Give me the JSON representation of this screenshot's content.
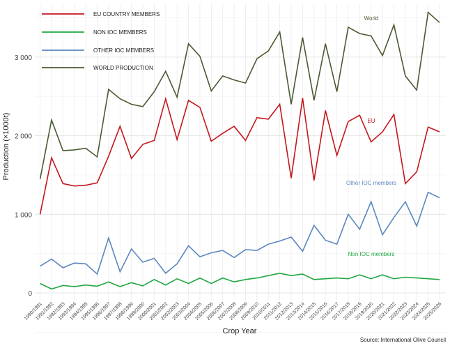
{
  "chart_data": {
    "type": "line",
    "title": "",
    "xlabel": "Crop Year",
    "ylabel": "Production (×1000t)",
    "ylim": [
      -100,
      3700
    ],
    "yticks": [
      0,
      1000,
      2000,
      3000
    ],
    "ytick_labels": [
      "0",
      "1 000",
      "2 000",
      "3 000"
    ],
    "grid": true,
    "legend_placement": "top-left",
    "source": "Source: International Olive Council",
    "categories": [
      "1990/1991",
      "1991/1992",
      "1992/1993",
      "1993/1994",
      "1994/1995",
      "1995/1996",
      "1996/1997",
      "1997/1998",
      "1998/1999",
      "1999/2000",
      "2000/2001",
      "2001/2002",
      "2002/2003",
      "2003/2004",
      "2004/2005",
      "2005/2006",
      "2006/2007",
      "2007/2008",
      "2008/2009",
      "2009/2010",
      "2010/2011",
      "2011/2012",
      "2012/2013",
      "2013/2014",
      "2014/2015",
      "2015/2016",
      "2016/2017",
      "2017/2018",
      "2018/2019",
      "2019/2020",
      "2020/2021",
      "2021/2022",
      "2022/2023",
      "2023/2024",
      "2024/2025",
      "2025/2026"
    ],
    "series": [
      {
        "name": "EU COUNTRY MEMBERS",
        "annotation": "EU",
        "color": "#c4161c",
        "values": [
          1000,
          1720,
          1390,
          1360,
          1370,
          1400,
          1740,
          2120,
          1710,
          1890,
          1940,
          2470,
          1950,
          2450,
          2360,
          1930,
          2030,
          2120,
          1940,
          2230,
          2210,
          2400,
          1460,
          2480,
          1430,
          2320,
          1750,
          2180,
          2260,
          1920,
          2050,
          2270,
          1390,
          1540,
          2110,
          2050
        ]
      },
      {
        "name": "NON IOC MEMBERS",
        "annotation": "Non IOC members",
        "color": "#1fa840",
        "values": [
          120,
          50,
          95,
          80,
          100,
          85,
          140,
          80,
          130,
          90,
          170,
          100,
          180,
          120,
          190,
          120,
          190,
          140,
          170,
          190,
          220,
          250,
          220,
          240,
          170,
          180,
          190,
          180,
          230,
          180,
          230,
          180,
          200,
          190,
          180,
          170
        ]
      },
      {
        "name": "OTHER IOC MEMBERS",
        "annotation": "Other IOC members",
        "color": "#5a87c0",
        "values": [
          340,
          430,
          320,
          380,
          370,
          240,
          700,
          270,
          560,
          390,
          440,
          250,
          370,
          600,
          460,
          510,
          540,
          450,
          550,
          540,
          620,
          660,
          710,
          530,
          860,
          670,
          620,
          1000,
          810,
          1160,
          740,
          960,
          1160,
          850,
          1280,
          1210
        ]
      },
      {
        "name": "WORLD PRODUCTION",
        "annotation": "World",
        "color": "#4a5a32",
        "values": [
          1450,
          2200,
          1810,
          1820,
          1840,
          1730,
          2590,
          2470,
          2400,
          2370,
          2560,
          2820,
          2490,
          3170,
          3010,
          2570,
          2760,
          2710,
          2670,
          2980,
          3080,
          3320,
          2400,
          3250,
          2450,
          3170,
          2560,
          3380,
          3300,
          3270,
          3020,
          3410,
          2760,
          2580,
          3570,
          3440
        ]
      }
    ]
  }
}
